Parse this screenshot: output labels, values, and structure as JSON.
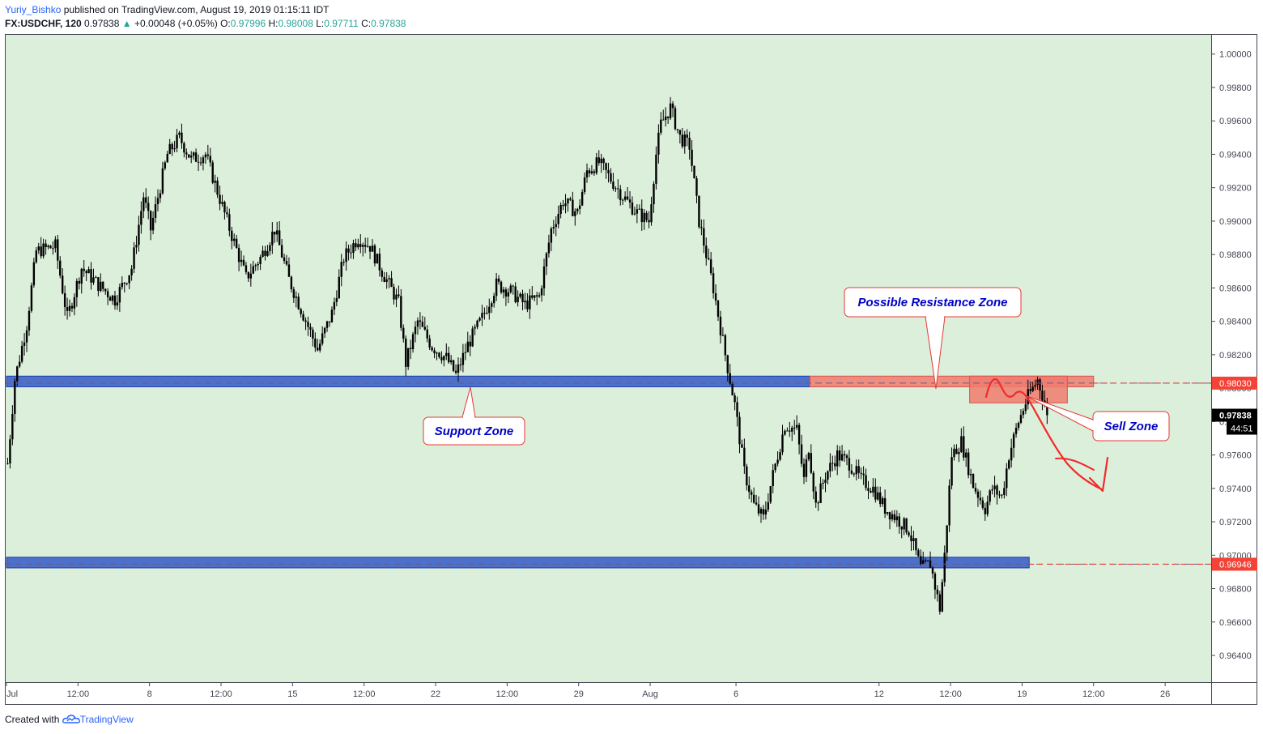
{
  "header": {
    "author": "Yuriy_Bishko",
    "published": "published on TradingView.com, August 19, 2019 01:15:11 IDT",
    "symbol": "FX:USDCHF, 120",
    "last": "0.97838",
    "arrow": "▲",
    "change": "+0.00048 (+0.05%)",
    "o_label": "O:",
    "o_value": "0.97996",
    "h_label": "H:",
    "h_value": "0.98008",
    "l_label": "L:",
    "l_value": "0.97711",
    "c_label": "C:",
    "c_value": "0.97838"
  },
  "footer": {
    "created_with": "Created with",
    "brand": "TradingView",
    "logo_icon": "tradingview-cloud-icon"
  },
  "colors": {
    "plot_bg": "#dcefdb",
    "candle": "#000000",
    "support_zone": "#3d62c8",
    "resistance_zone": "#f07b6d",
    "annotation_text": "#0000c8",
    "annotation_border": "#e53935",
    "level_line": "#f44336",
    "arrow": "#f22a2a"
  },
  "chart_data": {
    "type": "candlestick",
    "timeframe": "120",
    "ylim": [
      0.9624,
      1.0012
    ],
    "price_ticks": [
      "1.00000",
      "0.99800",
      "0.99600",
      "0.99400",
      "0.99200",
      "0.99000",
      "0.98800",
      "0.98600",
      "0.98400",
      "0.98200",
      "0.98000",
      "0.97800",
      "0.97600",
      "0.97400",
      "0.97200",
      "0.97000",
      "0.96800",
      "0.96600",
      "0.96400"
    ],
    "time_ticks": [
      {
        "label": "Jul",
        "bar": 0
      },
      {
        "label": "12:00",
        "bar": 30
      },
      {
        "label": "8",
        "bar": 60
      },
      {
        "label": "12:00",
        "bar": 90
      },
      {
        "label": "15",
        "bar": 120
      },
      {
        "label": "12:00",
        "bar": 150
      },
      {
        "label": "22",
        "bar": 180
      },
      {
        "label": "12:00",
        "bar": 210
      },
      {
        "label": "29",
        "bar": 240
      },
      {
        "label": "Aug",
        "bar": 270
      },
      {
        "label": "6",
        "bar": 306
      },
      {
        "label": "12",
        "bar": 366
      },
      {
        "label": "12:00",
        "bar": 396
      },
      {
        "label": "19",
        "bar": 426
      },
      {
        "label": "12:00",
        "bar": 456
      },
      {
        "label": "26",
        "bar": 486
      }
    ],
    "total_bars": 506,
    "current_price": {
      "label": "0.97838",
      "value": 0.97838
    },
    "countdown": "44:51",
    "level_labels": [
      {
        "label": "0.98030",
        "value": 0.9803
      },
      {
        "label": "0.96946",
        "value": 0.96946
      }
    ],
    "path": [
      [
        0,
        0.9755
      ],
      [
        3,
        0.9805
      ],
      [
        8,
        0.9838
      ],
      [
        12,
        0.9882
      ],
      [
        20,
        0.9885
      ],
      [
        25,
        0.9842
      ],
      [
        31,
        0.9872
      ],
      [
        38,
        0.9862
      ],
      [
        45,
        0.9853
      ],
      [
        52,
        0.9872
      ],
      [
        57,
        0.9915
      ],
      [
        60,
        0.9895
      ],
      [
        67,
        0.994
      ],
      [
        72,
        0.995
      ],
      [
        77,
        0.9937
      ],
      [
        83,
        0.994
      ],
      [
        92,
        0.99
      ],
      [
        100,
        0.9866
      ],
      [
        106,
        0.9878
      ],
      [
        112,
        0.9895
      ],
      [
        118,
        0.9865
      ],
      [
        124,
        0.9844
      ],
      [
        130,
        0.9823
      ],
      [
        136,
        0.9845
      ],
      [
        141,
        0.9878
      ],
      [
        147,
        0.989
      ],
      [
        152,
        0.9885
      ],
      [
        157,
        0.987
      ],
      [
        164,
        0.9851
      ],
      [
        167,
        0.9815
      ],
      [
        172,
        0.984
      ],
      [
        178,
        0.9825
      ],
      [
        184,
        0.9818
      ],
      [
        188,
        0.9808
      ],
      [
        193,
        0.9826
      ],
      [
        199,
        0.9842
      ],
      [
        205,
        0.9862
      ],
      [
        211,
        0.9858
      ],
      [
        217,
        0.985
      ],
      [
        223,
        0.9855
      ],
      [
        228,
        0.9895
      ],
      [
        233,
        0.9912
      ],
      [
        239,
        0.9905
      ],
      [
        243,
        0.993
      ],
      [
        248,
        0.9935
      ],
      [
        253,
        0.9925
      ],
      [
        258,
        0.9915
      ],
      [
        264,
        0.9905
      ],
      [
        269,
        0.99
      ],
      [
        272,
        0.994
      ],
      [
        274,
        0.9958
      ],
      [
        278,
        0.9968
      ],
      [
        282,
        0.995
      ],
      [
        286,
        0.9945
      ],
      [
        290,
        0.99
      ],
      [
        296,
        0.986
      ],
      [
        301,
        0.982
      ],
      [
        305,
        0.979
      ],
      [
        309,
        0.975
      ],
      [
        313,
        0.973
      ],
      [
        317,
        0.9722
      ],
      [
        321,
        0.9748
      ],
      [
        326,
        0.9778
      ],
      [
        331,
        0.9775
      ],
      [
        334,
        0.9745
      ],
      [
        336,
        0.9765
      ],
      [
        339,
        0.973
      ],
      [
        343,
        0.9748
      ],
      [
        348,
        0.976
      ],
      [
        353,
        0.9755
      ],
      [
        358,
        0.9745
      ],
      [
        363,
        0.974
      ],
      [
        368,
        0.9728
      ],
      [
        373,
        0.9722
      ],
      [
        378,
        0.9715
      ],
      [
        383,
        0.9692
      ],
      [
        387,
        0.9695
      ],
      [
        391,
        0.9668
      ],
      [
        393,
        0.97
      ],
      [
        396,
        0.976
      ],
      [
        400,
        0.9768
      ],
      [
        405,
        0.9742
      ],
      [
        410,
        0.9728
      ],
      [
        413,
        0.974
      ],
      [
        417,
        0.9735
      ],
      [
        420,
        0.976
      ],
      [
        424,
        0.978
      ],
      [
        428,
        0.9795
      ],
      [
        432,
        0.9805
      ],
      [
        434,
        0.9796
      ],
      [
        436,
        0.9784
      ]
    ],
    "zones": [
      {
        "name": "Support Zone band",
        "x0": 0,
        "x1": 337,
        "top": 0.98072,
        "bottom": 0.98008,
        "color": "blue"
      },
      {
        "name": "Resistance band",
        "x0": 337,
        "x1": 456,
        "top": 0.98072,
        "bottom": 0.98008,
        "color": "red"
      },
      {
        "name": "Sell Zone box",
        "x0": 404,
        "x1": 445,
        "top": 0.98072,
        "bottom": 0.97912,
        "color": "red"
      },
      {
        "name": "Lower support band",
        "x0": 0,
        "x1": 429,
        "top": 0.96988,
        "bottom": 0.96924,
        "color": "blue"
      }
    ],
    "annotations": [
      {
        "text": "Support Zone"
      },
      {
        "text": "Possible Resistance Zone"
      },
      {
        "text": "Sell Zone"
      }
    ],
    "grid": false,
    "legend": "none"
  }
}
